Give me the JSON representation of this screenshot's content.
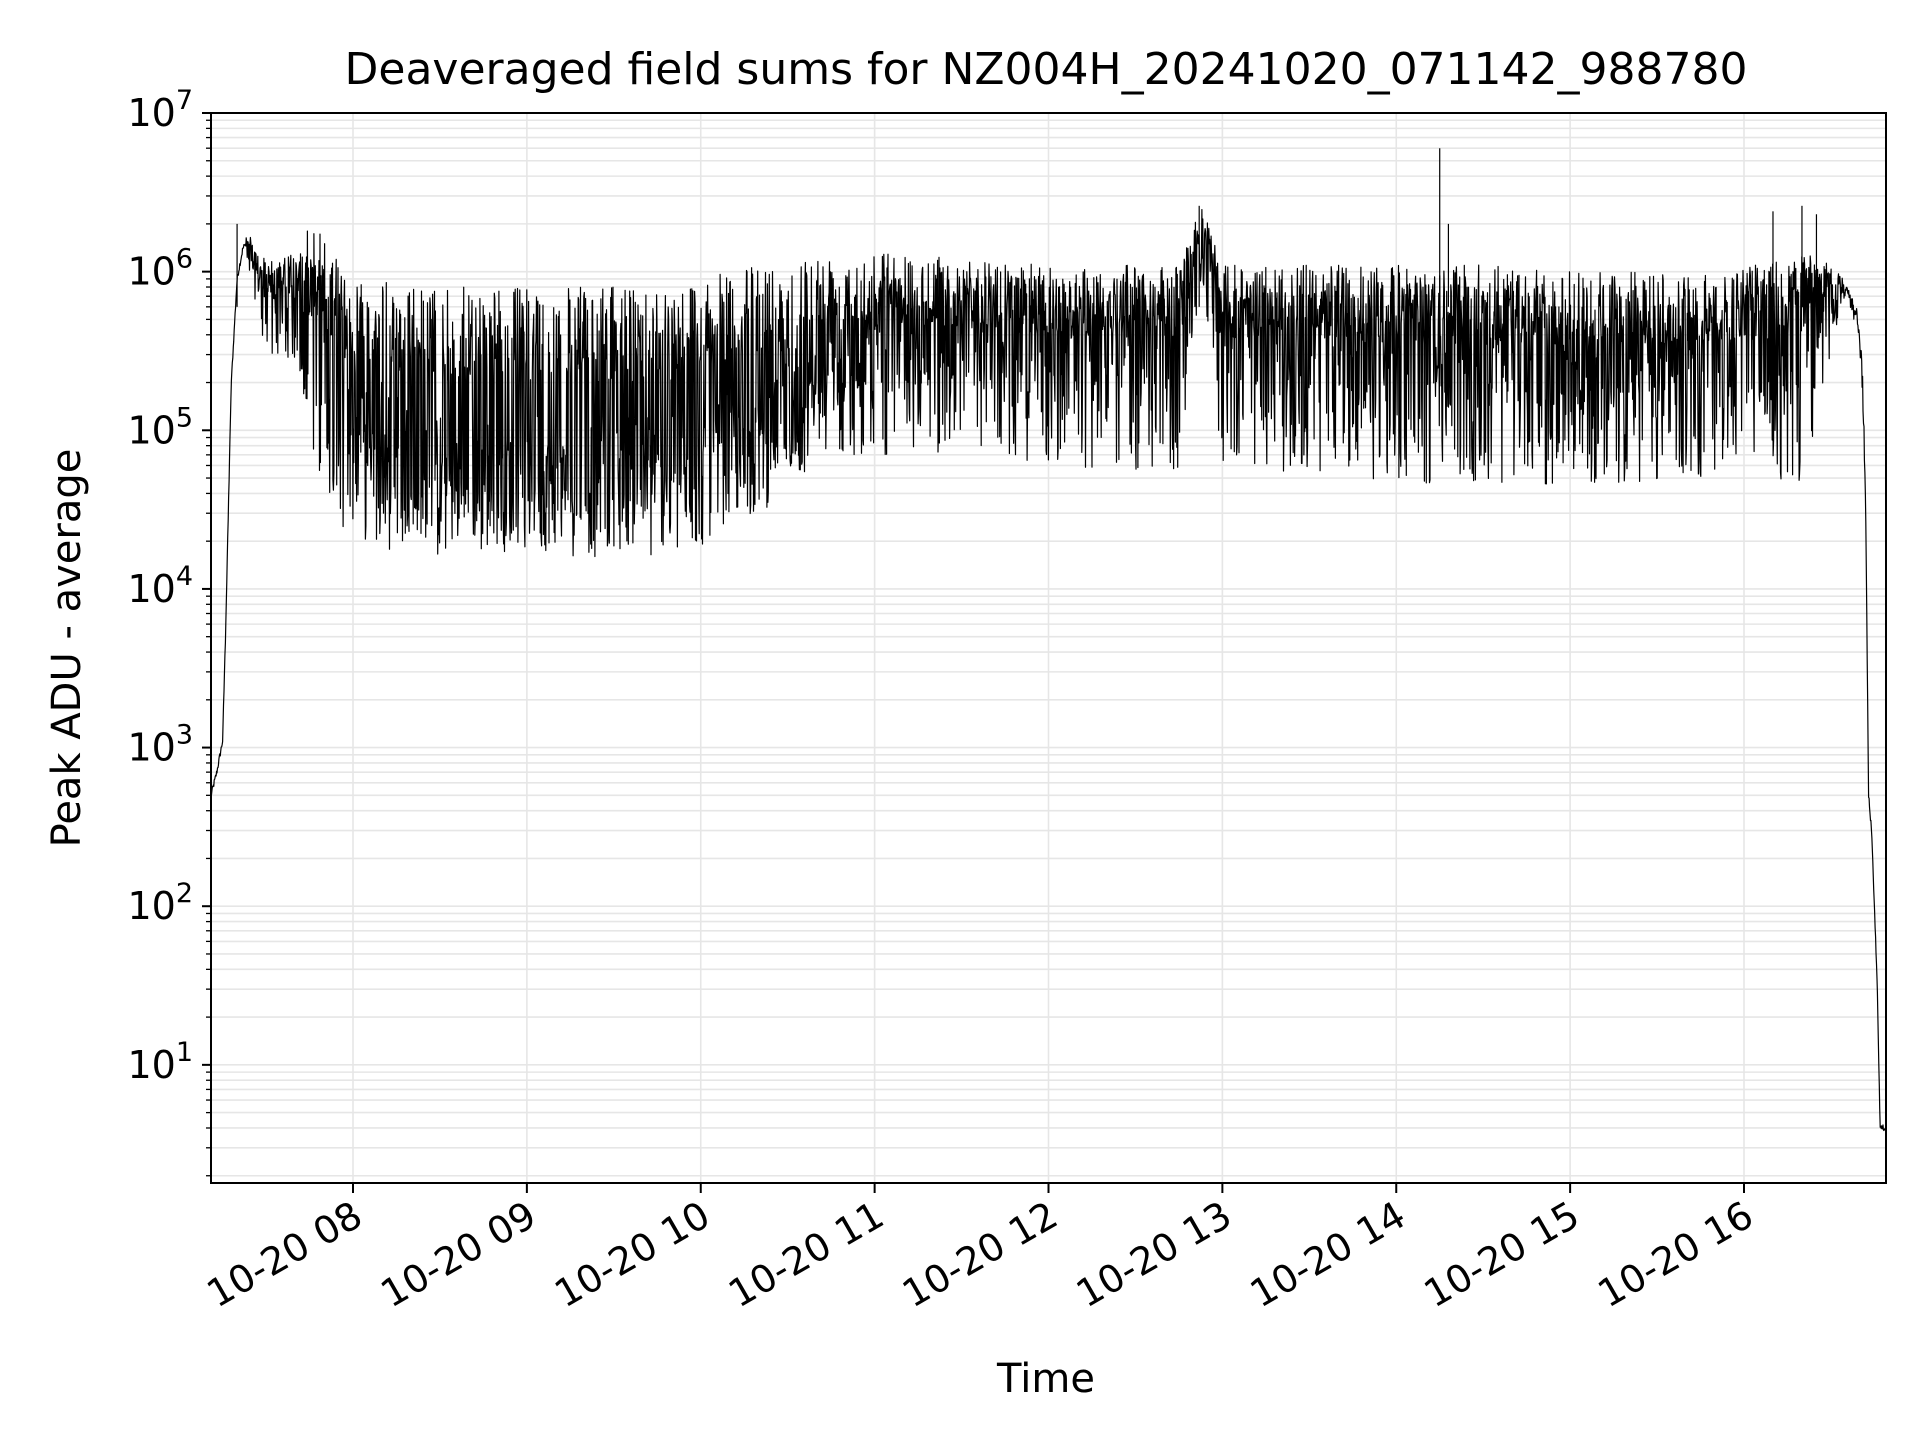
{
  "chart_data": {
    "type": "line",
    "title": "Deaveraged field sums for NZ004H_20241020_071142_988780",
    "xlabel": "Time",
    "ylabel": "Peak ADU - average",
    "y_scale": "log",
    "ylim": [
      1.8,
      10000000
    ],
    "xlim": [
      "2024-10-20 07:11",
      "2024-10-20 16:49"
    ],
    "x_ticks": [
      {
        "x": "2024-10-20 08:00",
        "label": "10-20 08"
      },
      {
        "x": "2024-10-20 09:00",
        "label": "10-20 09"
      },
      {
        "x": "2024-10-20 10:00",
        "label": "10-20 10"
      },
      {
        "x": "2024-10-20 11:00",
        "label": "10-20 11"
      },
      {
        "x": "2024-10-20 12:00",
        "label": "10-20 12"
      },
      {
        "x": "2024-10-20 13:00",
        "label": "10-20 13"
      },
      {
        "x": "2024-10-20 14:00",
        "label": "10-20 14"
      },
      {
        "x": "2024-10-20 15:00",
        "label": "10-20 15"
      },
      {
        "x": "2024-10-20 16:00",
        "label": "10-20 16"
      }
    ],
    "y_ticks": [
      {
        "value": 10,
        "base": "10",
        "exp": "1"
      },
      {
        "value": 100,
        "base": "10",
        "exp": "2"
      },
      {
        "value": 1000,
        "base": "10",
        "exp": "3"
      },
      {
        "value": 10000,
        "base": "10",
        "exp": "4"
      },
      {
        "value": 100000,
        "base": "10",
        "exp": "5"
      },
      {
        "value": 1000000,
        "base": "10",
        "exp": "6"
      },
      {
        "value": 10000000,
        "base": "10",
        "exp": "7"
      }
    ],
    "grid": true,
    "line_color": "#000000",
    "series": [
      {
        "x": [
          "2024-10-20 07:11",
          "2024-10-20 07:13",
          "2024-10-20 07:15",
          "2024-10-20 07:16",
          "2024-10-20 07:18",
          "2024-10-20 07:20",
          "2024-10-20 07:22",
          "2024-10-20 07:24",
          "2024-10-20 07:26",
          "2024-10-20 07:30",
          "2024-10-20 07:35",
          "2024-10-20 07:40",
          "2024-10-20 07:45",
          "2024-10-20 07:50",
          "2024-10-20 07:55",
          "2024-10-20 08:00",
          "2024-10-20 08:10",
          "2024-10-20 08:20",
          "2024-10-20 08:30",
          "2024-10-20 08:40",
          "2024-10-20 08:50",
          "2024-10-20 09:00",
          "2024-10-20 09:10",
          "2024-10-20 09:20",
          "2024-10-20 09:30",
          "2024-10-20 09:40",
          "2024-10-20 09:50",
          "2024-10-20 10:00",
          "2024-10-20 10:10",
          "2024-10-20 10:20",
          "2024-10-20 10:30",
          "2024-10-20 10:40",
          "2024-10-20 10:50",
          "2024-10-20 11:00",
          "2024-10-20 11:15",
          "2024-10-20 11:30",
          "2024-10-20 11:45",
          "2024-10-20 12:00",
          "2024-10-20 12:15",
          "2024-10-20 12:30",
          "2024-10-20 12:45",
          "2024-10-20 12:53",
          "2024-10-20 13:00",
          "2024-10-20 13:15",
          "2024-10-20 13:30",
          "2024-10-20 13:45",
          "2024-10-20 14:00",
          "2024-10-20 14:15",
          "2024-10-20 14:30",
          "2024-10-20 14:45",
          "2024-10-20 15:00",
          "2024-10-20 15:15",
          "2024-10-20 15:30",
          "2024-10-20 15:45",
          "2024-10-20 16:00",
          "2024-10-20 16:10",
          "2024-10-20 16:20",
          "2024-10-20 16:30",
          "2024-10-20 16:34",
          "2024-10-20 16:37",
          "2024-10-20 16:39",
          "2024-10-20 16:41",
          "2024-10-20 16:42",
          "2024-10-20 16:43",
          "2024-10-20 16:44",
          "2024-10-20 16:45",
          "2024-10-20 16:46",
          "2024-10-20 16:47",
          "2024-10-20 16:49"
        ],
        "y": [
          500,
          700,
          1100,
          5000,
          200000,
          900000,
          1400000,
          1600000,
          1100000,
          700000,
          800000,
          700000,
          1000000,
          800000,
          500000,
          120000,
          80000,
          60000,
          50000,
          50000,
          50000,
          50000,
          50000,
          50000,
          50000,
          50000,
          50000,
          50000,
          70000,
          90000,
          150000,
          250000,
          300000,
          350000,
          400000,
          450000,
          450000,
          450000,
          400000,
          400000,
          450000,
          2500000,
          450000,
          400000,
          350000,
          350000,
          350000,
          400000,
          350000,
          300000,
          250000,
          250000,
          300000,
          300000,
          300000,
          350000,
          450000,
          700000,
          900000,
          600000,
          550000,
          200000,
          30000,
          500,
          300,
          100,
          30,
          4,
          4
        ],
        "upper": [
          500,
          700,
          1100,
          5000,
          200000,
          900000,
          1400000,
          1800000,
          1300000,
          1200000,
          1300000,
          1300000,
          1300000,
          1200000,
          1100000,
          1000000,
          900000,
          800000,
          800000,
          800000,
          800000,
          800000,
          800000,
          800000,
          800000,
          800000,
          850000,
          900000,
          1000000,
          1100000,
          1200000,
          1300000,
          1350000,
          1400000,
          1300000,
          1200000,
          1150000,
          1100000,
          1100000,
          1100000,
          1100000,
          2600000,
          1100000,
          1100000,
          1100000,
          1100000,
          1100000,
          1100000,
          1100000,
          1050000,
          1000000,
          1000000,
          1000000,
          1000000,
          1050000,
          1300000,
          1500000,
          1100000,
          950000,
          700000,
          600000,
          250000,
          30000,
          500,
          300,
          100,
          30,
          4,
          4
        ],
        "lower": [
          500,
          700,
          1100,
          5000,
          200000,
          900000,
          1400000,
          1000000,
          400000,
          300000,
          300000,
          200000,
          80000,
          40000,
          25000,
          22000,
          18000,
          16000,
          15000,
          16000,
          17000,
          17000,
          16000,
          16000,
          15000,
          15000,
          15000,
          18000,
          24000,
          30000,
          40000,
          60000,
          70000,
          70000,
          70000,
          65000,
          60000,
          60000,
          55000,
          55000,
          55000,
          1000000,
          55000,
          55000,
          55000,
          50000,
          45000,
          45000,
          45000,
          42000,
          42000,
          45000,
          48000,
          50000,
          55000,
          50000,
          45000,
          300000,
          700000,
          500000,
          500000,
          150000,
          30000,
          500,
          300,
          100,
          30,
          4,
          4
        ]
      }
    ],
    "spikes": [
      {
        "x": "2024-10-20 07:20",
        "y": 2000000
      },
      {
        "x": "2024-10-20 12:52",
        "y": 2600000
      },
      {
        "x": "2024-10-20 14:15",
        "y": 6000000
      },
      {
        "x": "2024-10-20 14:18",
        "y": 2000000
      },
      {
        "x": "2024-10-20 16:10",
        "y": 2400000
      },
      {
        "x": "2024-10-20 16:20",
        "y": 2600000
      },
      {
        "x": "2024-10-20 16:25",
        "y": 2300000
      }
    ]
  }
}
